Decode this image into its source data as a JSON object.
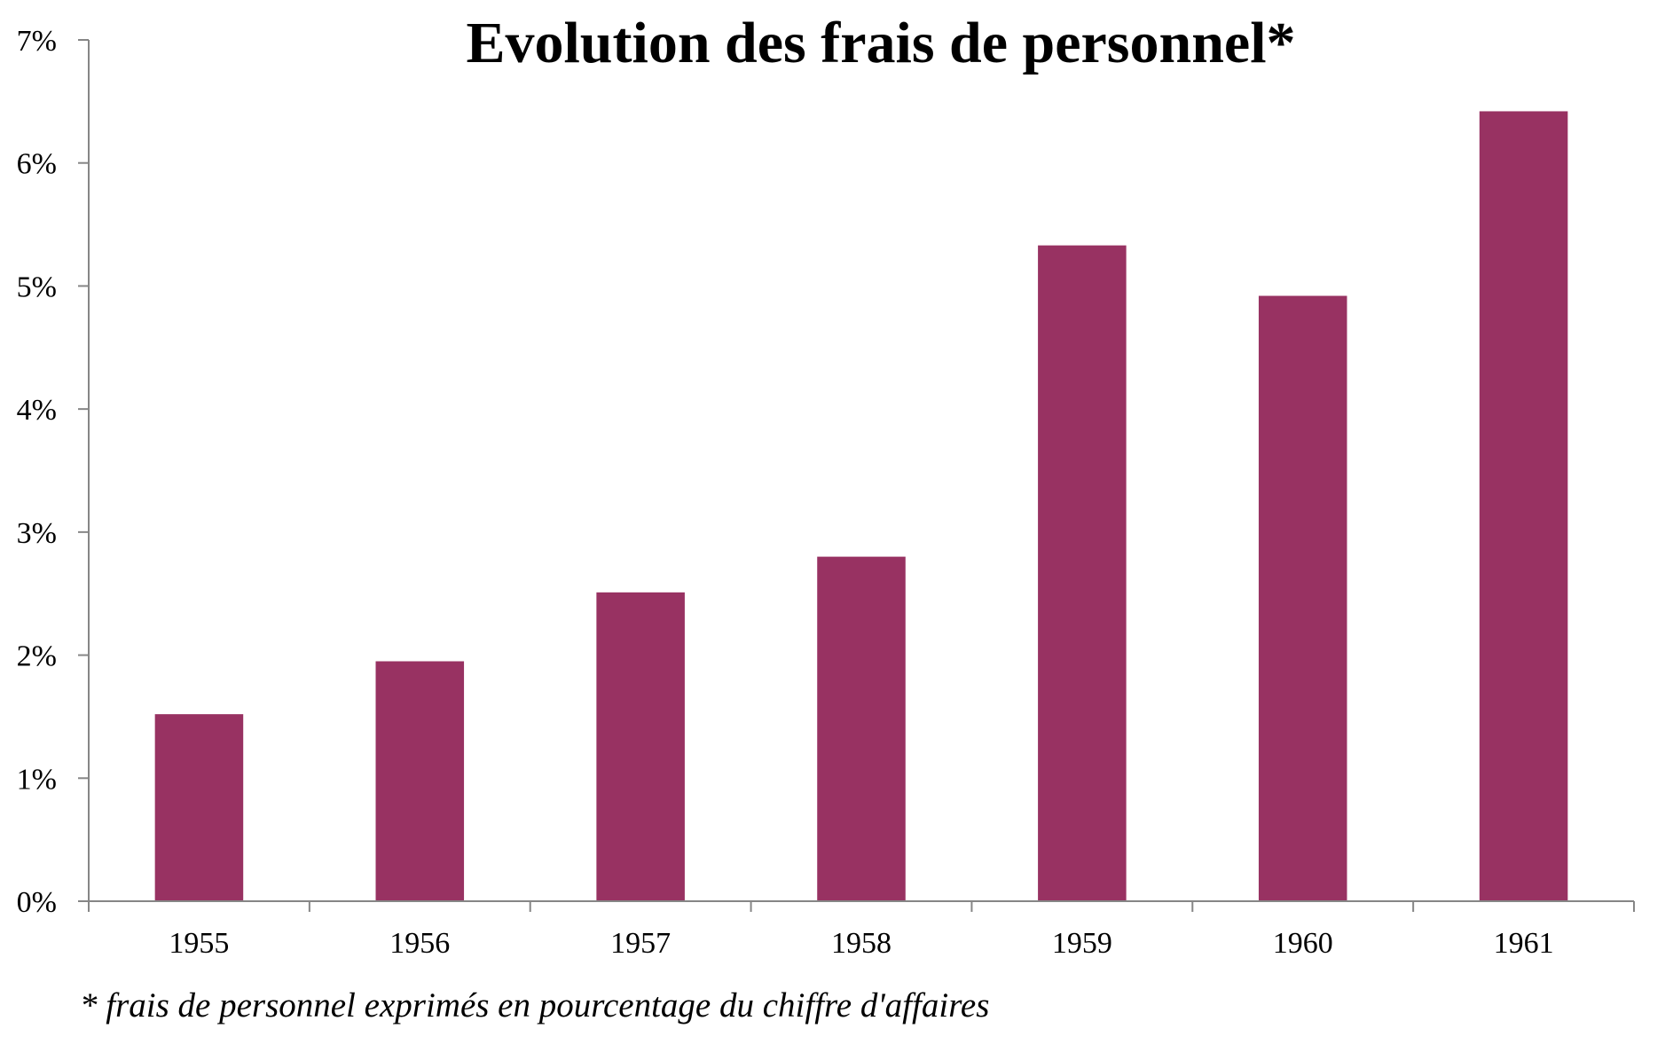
{
  "colors": {
    "bar": "#983262",
    "axis": "#868686",
    "background": "#ffffff"
  },
  "chart_data": {
    "type": "bar",
    "title": "Evolution des frais de personnel*",
    "categories": [
      "1955",
      "1956",
      "1957",
      "1958",
      "1959",
      "1960",
      "1961"
    ],
    "values": [
      1.52,
      1.95,
      2.51,
      2.8,
      5.33,
      4.92,
      6.42
    ],
    "y_ticks": [
      "0%",
      "1%",
      "2%",
      "3%",
      "4%",
      "5%",
      "6%",
      "7%"
    ],
    "ylim": [
      0,
      7
    ],
    "xlabel": "",
    "ylabel": "",
    "grid": false,
    "legend": "none",
    "footnote": "* frais de personnel exprimés en pourcentage du chiffre d'affaires"
  }
}
